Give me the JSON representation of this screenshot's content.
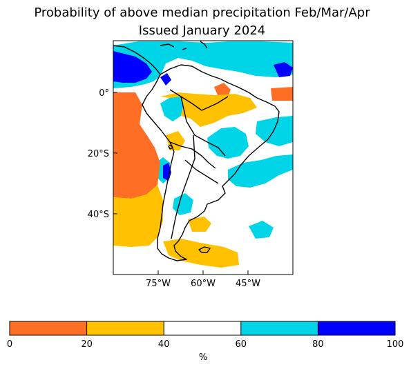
{
  "title": {
    "line1": "Probability of above median precipitation Feb/Mar/Apr",
    "line2": "Issued January 2024"
  },
  "map": {
    "region": "South America",
    "lon_ticks": [
      {
        "label": "75°W",
        "lon": -75
      },
      {
        "label": "60°W",
        "lon": -60
      },
      {
        "label": "45°W",
        "lon": -45
      }
    ],
    "lat_ticks": [
      {
        "label": "0°",
        "lat": 0
      },
      {
        "label": "20°S",
        "lat": -20
      },
      {
        "label": "40°S",
        "lat": -40
      }
    ],
    "extent": {
      "lon_min": -90,
      "lon_max": -30,
      "lat_min": -60,
      "lat_max": 17
    }
  },
  "colorbar": {
    "unit": "%",
    "ticks": [
      "0",
      "20",
      "40",
      "60",
      "80",
      "100"
    ],
    "bins": [
      {
        "from": 0,
        "to": 20,
        "color": "#ff6e25"
      },
      {
        "from": 20,
        "to": 40,
        "color": "#ffc100"
      },
      {
        "from": 40,
        "to": 60,
        "color": "#ffffff"
      },
      {
        "from": 60,
        "to": 80,
        "color": "#00d5e7"
      },
      {
        "from": 80,
        "to": 100,
        "color": "#0000ff"
      }
    ]
  }
}
